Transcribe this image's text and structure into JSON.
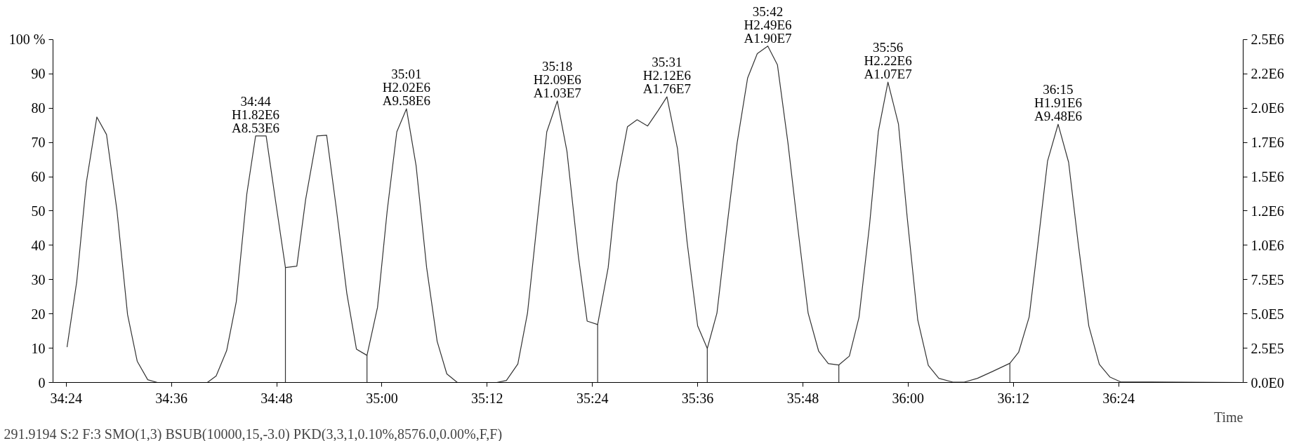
{
  "chart_data": {
    "type": "line",
    "xlabel": "Time",
    "xlim": [
      2062.5,
      2198.2
    ],
    "xticks": [
      {
        "value": 2064,
        "label": "34:24"
      },
      {
        "value": 2076,
        "label": "34:36"
      },
      {
        "value": 2088,
        "label": "34:48"
      },
      {
        "value": 2100,
        "label": "35:00"
      },
      {
        "value": 2112,
        "label": "35:12"
      },
      {
        "value": 2124,
        "label": "35:24"
      },
      {
        "value": 2136,
        "label": "35:36"
      },
      {
        "value": 2148,
        "label": "35:48"
      },
      {
        "value": 2160,
        "label": "36:00"
      },
      {
        "value": 2172,
        "label": "36:12"
      },
      {
        "value": 2184,
        "label": "36:24"
      }
    ],
    "ylim": [
      0,
      100
    ],
    "yticks": [
      0,
      10,
      20,
      30,
      40,
      50,
      60,
      70,
      80,
      90,
      {
        "value": 100,
        "label": "100 %"
      }
    ],
    "y2lim": [
      0,
      2500000
    ],
    "y2ticks": [
      {
        "value": 0,
        "label": "0.0E0"
      },
      {
        "value": 250000,
        "label": "2.5E5"
      },
      {
        "value": 500000,
        "label": "5.0E5"
      },
      {
        "value": 750000,
        "label": "7.5E5"
      },
      {
        "value": 1000000,
        "label": "1.0E6"
      },
      {
        "value": 1250000,
        "label": "1.2E6"
      },
      {
        "value": 1500000,
        "label": "1.5E6"
      },
      {
        "value": 1750000,
        "label": "1.7E6"
      },
      {
        "value": 2000000,
        "label": "2.0E6"
      },
      {
        "value": 2250000,
        "label": "2.2E6"
      },
      {
        "value": 2500000,
        "label": "2.5E6"
      }
    ],
    "grid": false,
    "marker": "none",
    "line_style": "solid",
    "annotations": [
      {
        "text": "34:44\nH1.82E6\nA8.53E6",
        "x": 2085.6,
        "y": 71.9
      },
      {
        "text": "35:01\nH2.02E6\nA9.58E6",
        "x": 2102.8,
        "y": 79.8
      },
      {
        "text": "35:18\nH2.09E6\nA1.03E7",
        "x": 2120.0,
        "y": 82.1
      },
      {
        "text": "35:31\nH2.12E6\nA1.76E7",
        "x": 2132.5,
        "y": 83.3
      },
      {
        "text": "35:42\nH2.49E6\nA1.90E7",
        "x": 2144.0,
        "y": 98.1
      },
      {
        "text": "35:56\nH2.22E6\nA1.07E7",
        "x": 2157.7,
        "y": 87.6
      },
      {
        "text": "36:15\nH1.91E6\nA9.48E6",
        "x": 2177.1,
        "y": 75.3
      },
      "291.9194 S:2 F:3 SMO(1,3) BSUB(10000,15,-3.0) PKD(3,3,1,0.10%,8576.0,0.00%,F,F)"
    ],
    "series": [
      {
        "color": "#333333",
        "x": [
          2064.1,
          2065.2,
          2066.3,
          2067.5,
          2068.6,
          2069.8,
          2071.0,
          2072.1,
          2073.3,
          2074.4,
          2080.1,
          2081.1,
          2082.3,
          2083.4,
          2084.6,
          2085.6,
          2086.8,
          2087.9,
          2089.0,
          2090.3,
          2091.3,
          2092.6,
          2093.7,
          2094.8,
          2096.0,
          2097.1,
          2098.3,
          2099.5,
          2100.6,
          2101.7,
          2102.8,
          2103.9,
          2105.1,
          2106.3,
          2107.4,
          2108.6,
          2113.1,
          2114.2,
          2115.5,
          2116.6,
          2117.7,
          2118.8,
          2120.0,
          2121.1,
          2122.4,
          2123.4,
          2124.6,
          2125.8,
          2126.8,
          2128.0,
          2129.1,
          2130.3,
          2131.5,
          2132.5,
          2133.7,
          2134.8,
          2136.0,
          2137.1,
          2138.2,
          2139.4,
          2140.5,
          2141.7,
          2142.8,
          2144.0,
          2145.1,
          2146.3,
          2147.5,
          2148.6,
          2149.8,
          2150.9,
          2152.1,
          2153.3,
          2154.4,
          2155.6,
          2156.6,
          2157.7,
          2158.9,
          2159.9,
          2161.1,
          2162.3,
          2163.5,
          2165.1,
          2166.4,
          2167.9,
          2169.7,
          2171.6,
          2172.6,
          2173.8,
          2174.8,
          2175.9,
          2177.1,
          2178.3,
          2179.4,
          2180.6,
          2181.8,
          2183.0,
          2184.2,
          2198.2
        ],
        "values": [
          10.3,
          29.3,
          58.3,
          77.4,
          72.3,
          50,
          19.8,
          6.2,
          0.8,
          0,
          0,
          1.9,
          9.3,
          23.6,
          55,
          71.9,
          71.9,
          52.5,
          33.5,
          33.9,
          53.3,
          71.9,
          72.1,
          50.8,
          26,
          9.7,
          7.9,
          21.9,
          50,
          73.1,
          79.8,
          63.2,
          33.5,
          12,
          2.5,
          0,
          0,
          0.6,
          5.4,
          20.2,
          46.7,
          73.1,
          82.1,
          67.4,
          36.8,
          17.9,
          16.9,
          33.5,
          58.3,
          74.6,
          76.6,
          74.8,
          79.3,
          83.3,
          68.2,
          40.9,
          16.5,
          9.9,
          20.2,
          46.7,
          69.8,
          88.8,
          95.9,
          98.1,
          92.6,
          69.8,
          43.4,
          20.2,
          9.1,
          5.5,
          5.1,
          7.7,
          19,
          45.9,
          73.1,
          87.6,
          75.3,
          48,
          18.2,
          5,
          1.2,
          0.1,
          0.1,
          1.2,
          3.3,
          5.6,
          8.8,
          19.1,
          40.4,
          64.6,
          75.3,
          64.2,
          40.4,
          16.5,
          5.3,
          1.6,
          0.2,
          0
        ]
      },
      {
        "color": "#333333",
        "x": [
          2089.0,
          2089.0,
          null,
          2098.3,
          2098.3,
          null,
          2124.6,
          2124.6,
          null,
          2137.1,
          2137.1,
          null,
          2152.1,
          2152.1,
          null,
          2171.6,
          2171.6
        ],
        "values": [
          33.5,
          0,
          null,
          7.9,
          0,
          null,
          16.9,
          0,
          null,
          9.9,
          0,
          null,
          5.1,
          0,
          null,
          5.6,
          0
        ]
      }
    ]
  }
}
